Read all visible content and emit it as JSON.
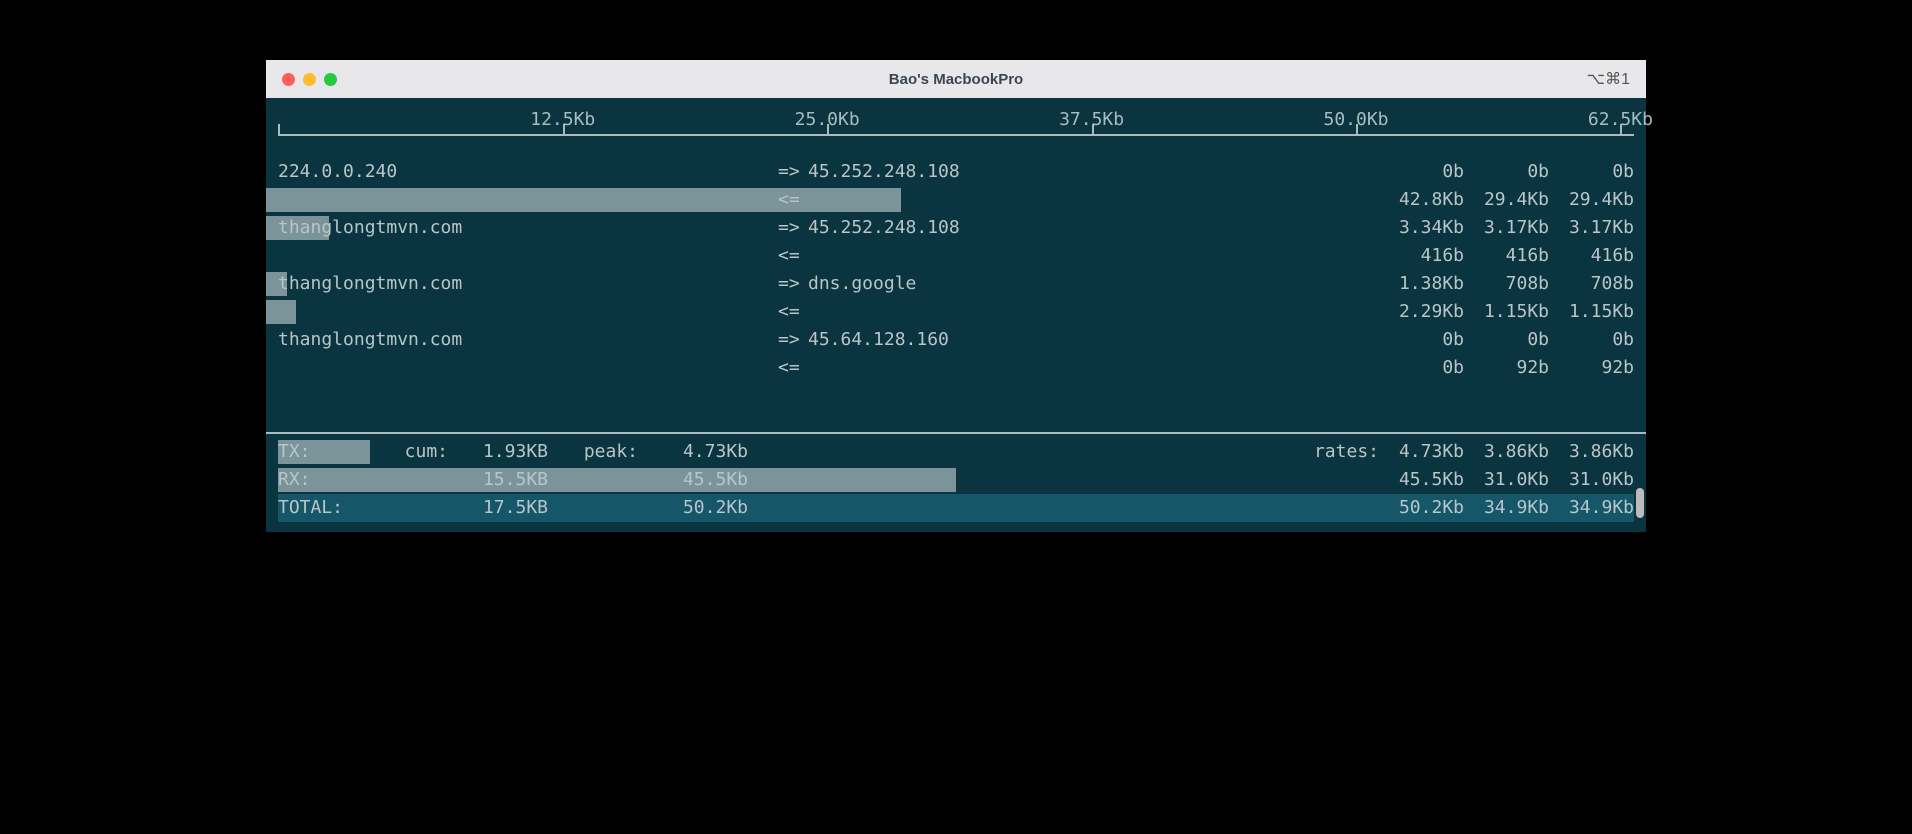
{
  "window": {
    "title": "Bao's MacbookPro",
    "shortcut": "⌥⌘1"
  },
  "colors": {
    "terminal_bg": "#0a3440",
    "text": "#b8c5c9",
    "bar": "#7a9499",
    "highlight": "#155668",
    "titlebar_bg": "#e8e8ea",
    "title_text": "#3c4650"
  },
  "scale": {
    "ticks": [
      {
        "label": "12.5Kb",
        "pos_pct": 21
      },
      {
        "label": "25.0Kb",
        "pos_pct": 40.5
      },
      {
        "label": "37.5Kb",
        "pos_pct": 60
      },
      {
        "label": "50.0Kb",
        "pos_pct": 79.5
      },
      {
        "label": "62.5Kb",
        "pos_pct": 99
      }
    ]
  },
  "connections": [
    {
      "source": "224.0.0.240",
      "dest": "45.252.248.108",
      "tx": {
        "r1": "0b",
        "r2": "0b",
        "r3": "0b",
        "bar_pct": 0
      },
      "rx": {
        "r1": "42.8Kb",
        "r2": "29.4Kb",
        "r3": "29.4Kb",
        "bar_pct": 46
      }
    },
    {
      "source": "thanglongtmvn.com",
      "dest": "45.252.248.108",
      "tx": {
        "r1": "3.34Kb",
        "r2": "3.17Kb",
        "r3": "3.17Kb",
        "bar_pct": 4.6
      },
      "rx": {
        "r1": "416b",
        "r2": "416b",
        "r3": "416b",
        "bar_pct": 0
      }
    },
    {
      "source": "thanglongtmvn.com",
      "dest": "dns.google",
      "tx": {
        "r1": "1.38Kb",
        "r2": "708b",
        "r3": "708b",
        "bar_pct": 1.5
      },
      "rx": {
        "r1": "2.29Kb",
        "r2": "1.15Kb",
        "r3": "1.15Kb",
        "bar_pct": 2.2
      },
      "rx_bar_pct": 2.2
    },
    {
      "source": "thanglongtmvn.com",
      "dest": "45.64.128.160",
      "tx": {
        "r1": "0b",
        "r2": "0b",
        "r3": "0b",
        "bar_pct": 0
      },
      "rx": {
        "r1": "0b",
        "r2": "92b",
        "r3": "92b",
        "bar_pct": 0
      }
    }
  ],
  "summary": {
    "tx": {
      "label": "TX:",
      "cum_label": "cum:",
      "cum": "1.93KB",
      "peak_label": "peak:",
      "peak": "4.73Kb",
      "rates_label": "rates:",
      "r1": "4.73Kb",
      "r2": "3.86Kb",
      "r3": "3.86Kb",
      "bar_pct": 6.8
    },
    "rx": {
      "label": "RX:",
      "cum": "15.5KB",
      "peak": "45.5Kb",
      "r1": "45.5Kb",
      "r2": "31.0Kb",
      "r3": "31.0Kb",
      "bar_pct": 50
    },
    "total": {
      "label": "TOTAL:",
      "cum": "17.5KB",
      "peak": "50.2Kb",
      "r1": "50.2Kb",
      "r2": "34.9Kb",
      "r3": "34.9Kb"
    }
  }
}
